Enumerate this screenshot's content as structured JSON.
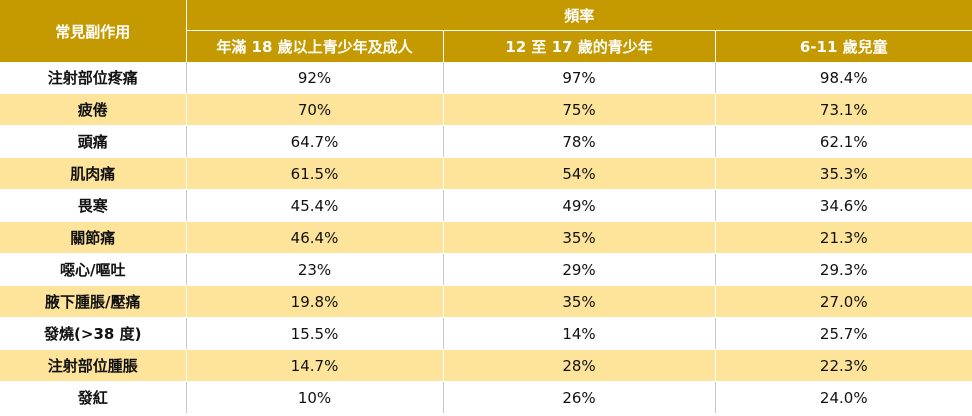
{
  "table": {
    "header": {
      "corner": "常見副作用",
      "group": "頻率",
      "columns": [
        "年滿 18 歲以上青少年及成人",
        "12 至 17 歲的青少年",
        "6-11 歲兒童"
      ]
    },
    "rows": [
      {
        "label": "注射部位疼痛",
        "values": [
          "92%",
          "97%",
          "98.4%"
        ]
      },
      {
        "label": "疲倦",
        "values": [
          "70%",
          "75%",
          "73.1%"
        ]
      },
      {
        "label": "頭痛",
        "values": [
          "64.7%",
          "78%",
          "62.1%"
        ]
      },
      {
        "label": "肌肉痛",
        "values": [
          "61.5%",
          "54%",
          "35.3%"
        ]
      },
      {
        "label": "畏寒",
        "values": [
          "45.4%",
          "49%",
          "34.6%"
        ]
      },
      {
        "label": "關節痛",
        "values": [
          "46.4%",
          "35%",
          "21.3%"
        ]
      },
      {
        "label": "噁心/嘔吐",
        "values": [
          "23%",
          "29%",
          "29.3%"
        ]
      },
      {
        "label": "腋下腫脹/壓痛",
        "values": [
          "19.8%",
          "35%",
          "27.0%"
        ]
      },
      {
        "label": "發燒(>38 度)",
        "values": [
          "15.5%",
          "14%",
          "25.7%"
        ]
      },
      {
        "label": "注射部位腫脹",
        "values": [
          "14.7%",
          "28%",
          "22.3%"
        ]
      },
      {
        "label": "發紅",
        "values": [
          "10%",
          "26%",
          "24.0%"
        ]
      }
    ],
    "colors": {
      "header_bg": "#c49a00",
      "stripe_bg": "#fde49a"
    }
  }
}
